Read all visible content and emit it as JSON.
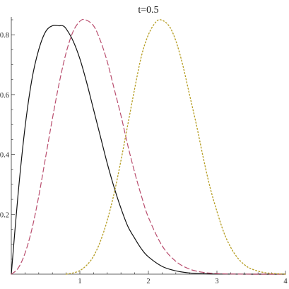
{
  "chart_data": {
    "type": "line",
    "title": "t=0.5",
    "xlabel": "",
    "ylabel": "",
    "xlim": [
      0,
      4
    ],
    "ylim": [
      0,
      0.85
    ],
    "x_ticks": [
      1,
      2,
      3,
      4
    ],
    "x_tick_labels": [
      "1",
      "2",
      "3",
      "4"
    ],
    "y_ticks": [
      0.2,
      0.4,
      0.6,
      0.8
    ],
    "y_tick_labels": [
      "0.2",
      "0.4",
      "0.6",
      "0.8"
    ],
    "grid": false,
    "legend": "none",
    "series": [
      {
        "style": "solid",
        "color": "#111111",
        "x": [
          0,
          0.1,
          0.2,
          0.3,
          0.4,
          0.5,
          0.6,
          0.7,
          0.75,
          0.8,
          0.9,
          1.0,
          1.1,
          1.2,
          1.3,
          1.4,
          1.5,
          1.6,
          1.7,
          1.8,
          1.9,
          2.0,
          2.2,
          2.4,
          2.6,
          2.8,
          3.0,
          3.5,
          4.0
        ],
        "y": [
          0,
          0.27,
          0.49,
          0.65,
          0.75,
          0.81,
          0.83,
          0.83,
          0.83,
          0.82,
          0.78,
          0.72,
          0.64,
          0.55,
          0.46,
          0.37,
          0.29,
          0.22,
          0.16,
          0.12,
          0.084,
          0.058,
          0.026,
          0.011,
          0.004,
          0.0015,
          0.0005,
          2e-05,
          0.0
        ]
      },
      {
        "style": "dashed",
        "color": "#b94d6e",
        "x": [
          0,
          0.1,
          0.2,
          0.3,
          0.4,
          0.5,
          0.6,
          0.7,
          0.8,
          0.9,
          1.0,
          1.08,
          1.2,
          1.3,
          1.4,
          1.5,
          1.6,
          1.7,
          1.8,
          1.9,
          2.0,
          2.2,
          2.4,
          2.6,
          2.8,
          3.0,
          3.2,
          3.5,
          4.0
        ],
        "y": [
          0,
          0.02,
          0.07,
          0.15,
          0.26,
          0.39,
          0.52,
          0.64,
          0.74,
          0.81,
          0.845,
          0.85,
          0.83,
          0.78,
          0.71,
          0.62,
          0.53,
          0.43,
          0.34,
          0.26,
          0.19,
          0.095,
          0.043,
          0.017,
          0.006,
          0.002,
          0.0006,
          0.0001,
          0.0
        ]
      },
      {
        "style": "dotted",
        "color": "#b8a02a",
        "x": [
          0.8,
          0.9,
          1.0,
          1.1,
          1.2,
          1.3,
          1.4,
          1.5,
          1.6,
          1.7,
          1.8,
          1.9,
          2.0,
          2.1,
          2.18,
          2.3,
          2.4,
          2.5,
          2.6,
          2.7,
          2.8,
          2.9,
          3.0,
          3.1,
          3.2,
          3.3,
          3.4,
          3.5,
          3.7,
          4.0
        ],
        "y": [
          0.0,
          0.004,
          0.012,
          0.03,
          0.06,
          0.11,
          0.18,
          0.27,
          0.38,
          0.5,
          0.62,
          0.73,
          0.8,
          0.84,
          0.85,
          0.83,
          0.78,
          0.7,
          0.6,
          0.5,
          0.39,
          0.29,
          0.21,
          0.14,
          0.09,
          0.055,
          0.032,
          0.018,
          0.005,
          0.0
        ]
      }
    ]
  }
}
